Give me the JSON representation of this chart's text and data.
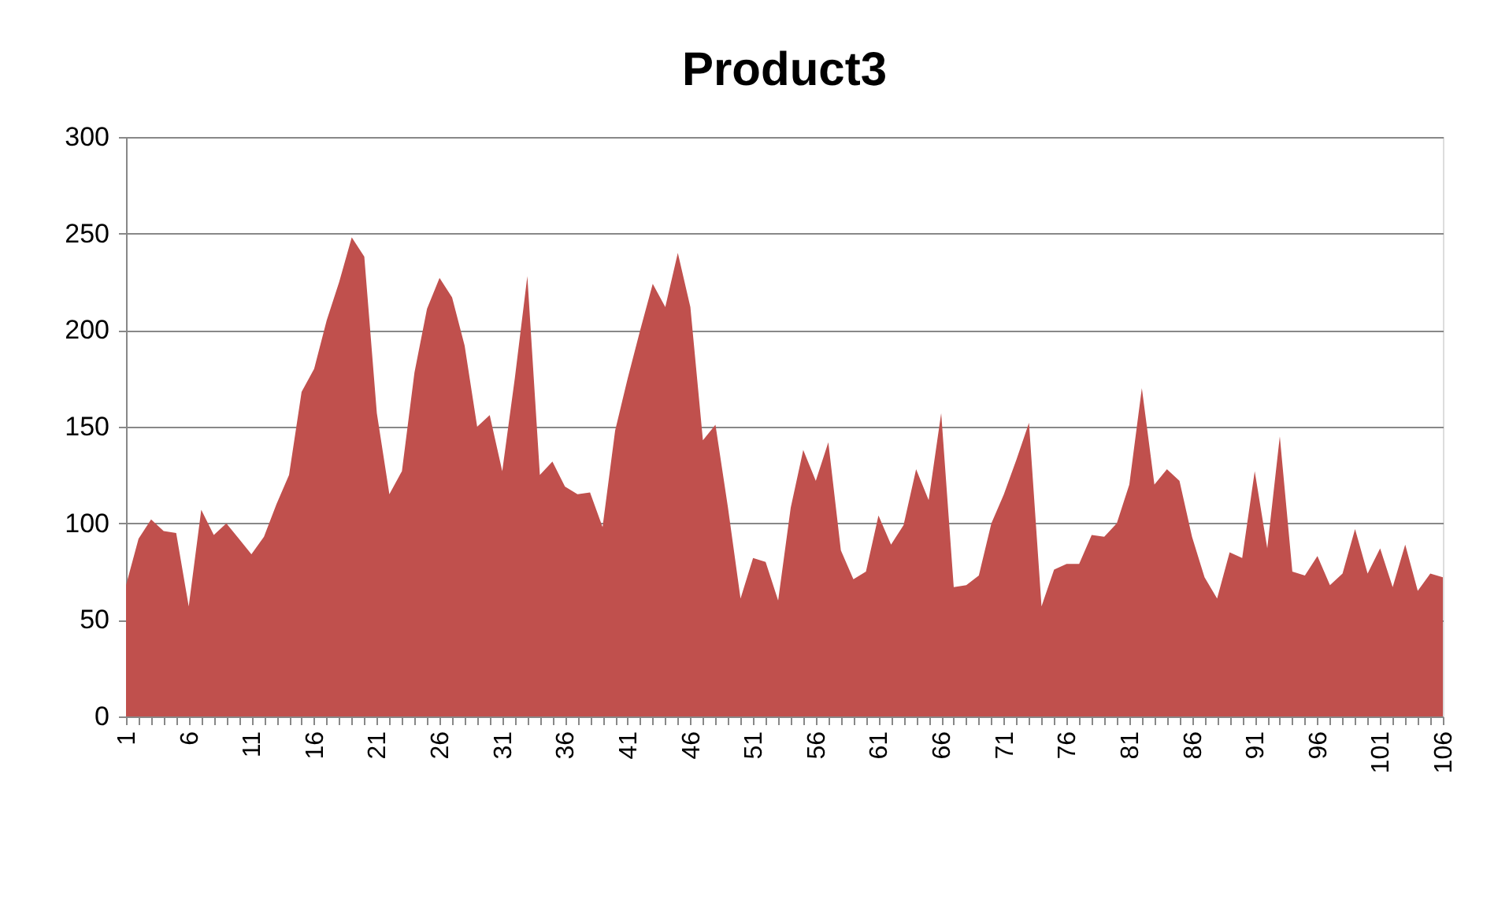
{
  "chart_data": {
    "type": "area",
    "title": "Product3",
    "categories": [
      "1",
      null,
      null,
      null,
      null,
      "6",
      null,
      null,
      null,
      null,
      "11",
      null,
      null,
      null,
      null,
      "16",
      null,
      null,
      null,
      null,
      "21",
      null,
      null,
      null,
      null,
      "26",
      null,
      null,
      null,
      null,
      "31",
      null,
      null,
      null,
      null,
      "36",
      null,
      null,
      null,
      null,
      "41",
      null,
      null,
      null,
      null,
      "46",
      null,
      null,
      null,
      null,
      "51",
      null,
      null,
      null,
      null,
      "56",
      null,
      null,
      null,
      null,
      "61",
      null,
      null,
      null,
      null,
      "66",
      null,
      null,
      null,
      null,
      "71",
      null,
      null,
      null,
      null,
      "76",
      null,
      null,
      null,
      null,
      "81",
      null,
      null,
      null,
      null,
      "86",
      null,
      null,
      null,
      null,
      "91",
      null,
      null,
      null,
      null,
      "96",
      null,
      null,
      null,
      null,
      "101",
      null,
      null,
      null,
      null,
      "106"
    ],
    "series": [
      {
        "color": "#c0504d",
        "values": [
          68,
          92,
          102,
          96,
          95,
          57,
          107,
          94,
          100,
          92,
          84,
          93,
          110,
          125,
          168,
          180,
          205,
          225,
          248,
          238,
          157,
          115,
          127,
          178,
          211,
          227,
          217,
          192,
          150,
          156,
          127,
          175,
          228,
          125,
          132,
          119,
          115,
          116,
          98,
          148,
          175,
          200,
          224,
          212,
          240,
          212,
          143,
          151,
          108,
          61,
          82,
          80,
          60,
          108,
          138,
          122,
          142,
          86,
          71,
          75,
          104,
          89,
          99,
          128,
          112,
          157,
          67,
          68,
          73,
          100,
          115,
          133,
          152,
          57,
          76,
          79,
          79,
          94,
          93,
          100,
          120,
          170,
          120,
          128,
          122,
          93,
          72,
          61,
          85,
          82,
          127,
          87,
          145,
          75,
          73,
          83,
          68,
          74,
          97,
          74,
          87,
          67,
          89,
          65,
          74,
          72
        ]
      }
    ],
    "ylim": [
      0,
      300
    ],
    "yticks": [
      0,
      50,
      100,
      150,
      200,
      250,
      300
    ],
    "grid": "y"
  }
}
